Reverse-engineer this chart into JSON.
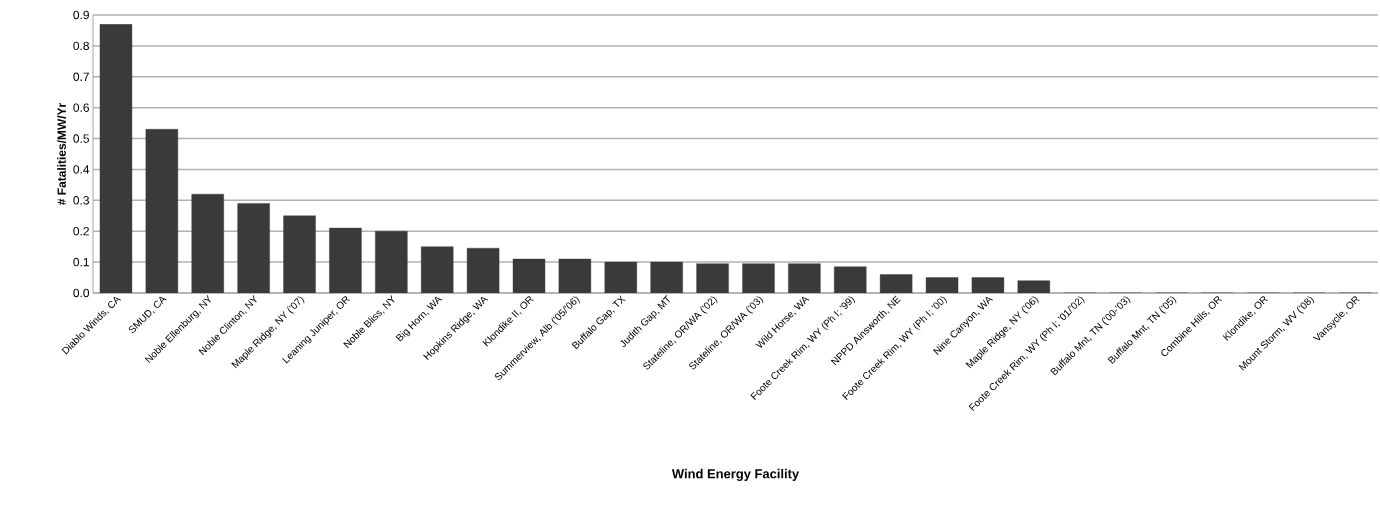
{
  "chart_data": {
    "type": "bar",
    "xlabel": "Wind Energy Facility",
    "ylabel": "# Fatalities/MW/Yr",
    "categories": [
      "Diablo Winds, CA",
      "SMUD, CA",
      "Noble Ellenburg, NY",
      "Noble Clinton, NY",
      "Maple Ridge, NY ('07)",
      "Leaning Juniper, OR",
      "Noble Bliss, NY",
      "Big Horn, WA",
      "Hopkins Ridge, WA",
      "Klondike II, OR",
      "Summerview, Alb ('05/'06)",
      "Buffalo Gap, TX",
      "Judith Gap, MT",
      "Stateline, OR/WA ('02)",
      "Stateline, OR/WA ('03)",
      "Wild Horse, WA",
      "Foote Creek Rim, WY (Ph I; '99)",
      "NPPD Ainsworth, NE",
      "Foote Creek Rim, WY (Ph I; '00)",
      "Nine Canyon, WA",
      "Maple Ridge, NY ('06)",
      "Foote Creek Rim, WY (Ph I; '01/'02)",
      "Buffalo Mnt, TN ('00-'03)",
      "Buffalo Mnt, TN ('05)",
      "Combine Hills, OR",
      "Klondike, OR",
      "Mount Storm, WV ('08)",
      "Vansycle, OR"
    ],
    "values": [
      0.87,
      0.53,
      0.32,
      0.29,
      0.25,
      0.21,
      0.2,
      0.15,
      0.145,
      0.11,
      0.11,
      0.1,
      0.1,
      0.095,
      0.095,
      0.095,
      0.085,
      0.06,
      0.05,
      0.05,
      0.04,
      0,
      0,
      0,
      0,
      0,
      0,
      0
    ],
    "color": "#3a3a3a",
    "ylim": [
      0,
      0.9
    ],
    "yticks": [
      {
        "value": 0,
        "label": "0.0"
      },
      0.1,
      0.2,
      0.3,
      0.4,
      0.5,
      0.6,
      0.7,
      0.8,
      0.9
    ],
    "grid": "y"
  }
}
